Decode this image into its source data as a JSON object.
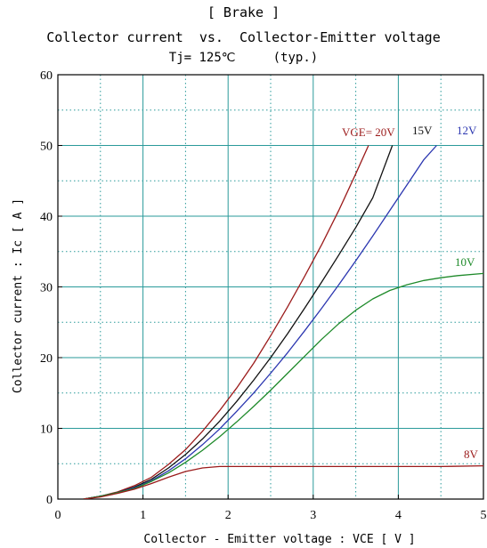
{
  "chart_data": {
    "type": "line",
    "title": "[ Brake ]",
    "subtitle": "Collector current  vs.  Collector-Emitter voltage",
    "condition": "Tj= 125℃     (typ.)",
    "xlabel": "Collector - Emitter voltage  :  VCE  [ V ]",
    "ylabel": "Collector current  :  Ic  [ A ]",
    "xlim": [
      0,
      5
    ],
    "ylim": [
      0,
      60
    ],
    "xticks": [
      0,
      1,
      2,
      3,
      4,
      5
    ],
    "yticks": [
      0,
      10,
      20,
      30,
      40,
      50,
      60
    ],
    "grid": true,
    "series": [
      {
        "name": "VGE= 20V",
        "color": "#9b1b1b",
        "x": [
          0.3,
          0.5,
          0.7,
          0.9,
          1.1,
          1.3,
          1.5,
          1.7,
          1.9,
          2.1,
          2.3,
          2.5,
          2.7,
          2.9,
          3.1,
          3.3,
          3.5,
          3.65
        ],
        "y": [
          0.0,
          0.4,
          1.0,
          1.9,
          3.1,
          4.9,
          7.0,
          9.6,
          12.5,
          15.7,
          19.2,
          23.1,
          27.2,
          31.5,
          36.0,
          40.8,
          46.0,
          50.0
        ]
      },
      {
        "name": "15V",
        "color": "#111111",
        "x": [
          0.3,
          0.5,
          0.7,
          0.9,
          1.1,
          1.3,
          1.5,
          1.7,
          1.9,
          2.1,
          2.3,
          2.5,
          2.7,
          2.9,
          3.1,
          3.3,
          3.5,
          3.7,
          3.93
        ],
        "y": [
          0.0,
          0.4,
          0.9,
          1.7,
          2.8,
          4.4,
          6.3,
          8.5,
          11.0,
          13.8,
          16.8,
          20.0,
          23.4,
          27.0,
          30.7,
          34.5,
          38.4,
          42.6,
          50.0
        ]
      },
      {
        "name": "12V",
        "color": "#2b36b0",
        "x": [
          0.3,
          0.5,
          0.7,
          0.9,
          1.1,
          1.3,
          1.5,
          1.7,
          1.9,
          2.1,
          2.3,
          2.5,
          2.7,
          2.9,
          3.1,
          3.3,
          3.5,
          3.7,
          3.9,
          4.1,
          4.3,
          4.45
        ],
        "y": [
          0.0,
          0.4,
          0.9,
          1.6,
          2.6,
          4.0,
          5.7,
          7.7,
          9.9,
          12.4,
          15.0,
          17.8,
          20.7,
          23.8,
          27.0,
          30.3,
          33.7,
          37.2,
          40.8,
          44.4,
          48.0,
          50.0
        ]
      },
      {
        "name": "10V",
        "color": "#1e8a2a",
        "x": [
          0.3,
          0.5,
          0.7,
          0.9,
          1.1,
          1.3,
          1.5,
          1.7,
          1.9,
          2.1,
          2.3,
          2.5,
          2.7,
          2.9,
          3.1,
          3.3,
          3.5,
          3.7,
          3.9,
          4.1,
          4.3,
          4.5,
          4.7,
          5.0
        ],
        "y": [
          0.0,
          0.4,
          0.9,
          1.5,
          2.5,
          3.7,
          5.2,
          6.9,
          8.8,
          10.9,
          13.1,
          15.4,
          17.8,
          20.2,
          22.6,
          24.8,
          26.7,
          28.3,
          29.5,
          30.3,
          30.9,
          31.3,
          31.6,
          31.9
        ]
      },
      {
        "name": "8V",
        "color": "#9b1b1b",
        "x": [
          0.3,
          0.5,
          0.7,
          0.9,
          1.1,
          1.3,
          1.5,
          1.7,
          1.9,
          2.0,
          2.5,
          3.0,
          3.5,
          4.0,
          4.5,
          5.0
        ],
        "y": [
          0.0,
          0.3,
          0.8,
          1.4,
          2.2,
          3.1,
          3.9,
          4.4,
          4.6,
          4.6,
          4.6,
          4.6,
          4.6,
          4.6,
          4.6,
          4.7
        ]
      }
    ]
  }
}
